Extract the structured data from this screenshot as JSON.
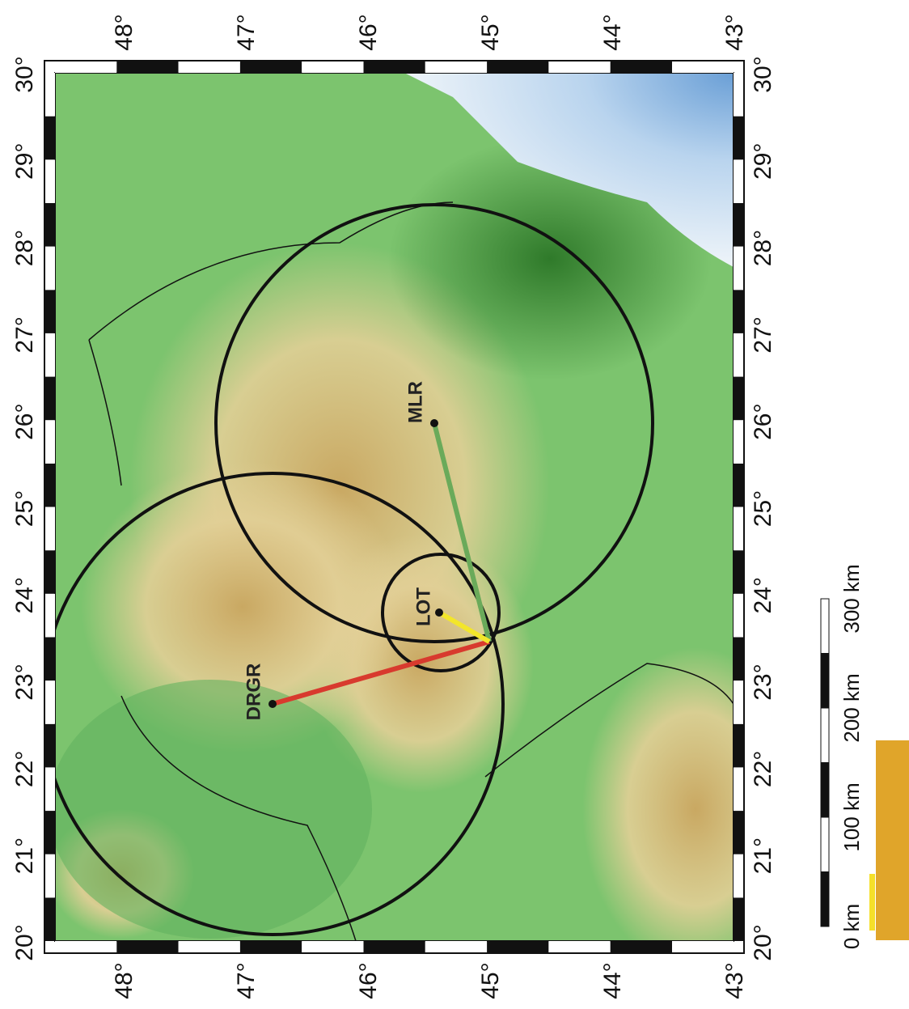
{
  "map": {
    "lon_labels": [
      "20°",
      "21°",
      "22°",
      "23°",
      "24°",
      "25°",
      "26°",
      "27°",
      "28°",
      "29°",
      "30°"
    ],
    "lat_labels": [
      "48°",
      "47°",
      "46°",
      "45°",
      "44°",
      "43°"
    ],
    "stations": [
      {
        "name": "DRGR"
      },
      {
        "name": "LOT"
      },
      {
        "name": "MLR"
      }
    ],
    "scale_labels": [
      "0 km",
      "100 km",
      "200 km",
      "300 km"
    ]
  }
}
